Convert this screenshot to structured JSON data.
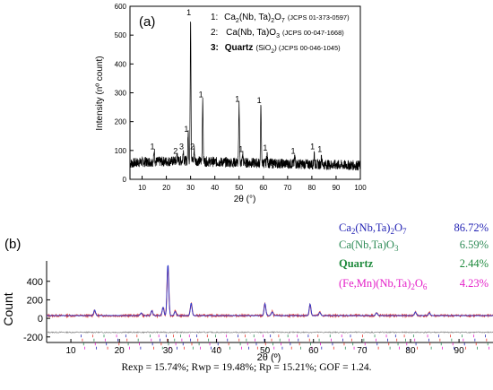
{
  "chart_data": [
    {
      "type": "line",
      "panel_label": "(a)",
      "xlabel": "2θ (°)",
      "ylabel": "Intensity (nº count)",
      "xlim": [
        5,
        100
      ],
      "ylim": [
        0,
        600
      ],
      "xticks": [
        10,
        20,
        30,
        40,
        50,
        60,
        70,
        80,
        90,
        100
      ],
      "yticks": [
        0,
        100,
        200,
        300,
        400,
        500,
        600
      ],
      "grid": false,
      "legend_position": "top-right",
      "legend": [
        {
          "num": "1:",
          "phase": "Ca",
          "s1": "2",
          "mid": "(Nb, Ta)",
          "s2": "2",
          "tail": "O",
          "s3": "7",
          "ref": "(JCPS 01-373-0597)"
        },
        {
          "num": "2:",
          "phase": "Ca(Nb, Ta)O",
          "s1": "3",
          "ref": "(JCPS 00-047-1668)"
        },
        {
          "num": "3:",
          "phase": "Quartz",
          "formula": "(SiO",
          "s1": "2",
          "close": ")",
          "ref": "(JCPS 00-046-1045)"
        }
      ],
      "background": [
        [
          5,
          55
        ],
        [
          10,
          60
        ],
        [
          20,
          62
        ],
        [
          30,
          65
        ],
        [
          40,
          60
        ],
        [
          50,
          58
        ],
        [
          60,
          56
        ],
        [
          70,
          54
        ],
        [
          80,
          52
        ],
        [
          90,
          50
        ],
        [
          100,
          48
        ]
      ],
      "noise_amplitude": 22,
      "peaks": [
        {
          "x": 15.0,
          "y": 95,
          "label": "1"
        },
        {
          "x": 24.5,
          "y": 80,
          "label": "2"
        },
        {
          "x": 27.0,
          "y": 95,
          "label": "3"
        },
        {
          "x": 29.0,
          "y": 155,
          "label": "1"
        },
        {
          "x": 30.0,
          "y": 560,
          "label": "1"
        },
        {
          "x": 31.5,
          "y": 95,
          "label": "2"
        },
        {
          "x": 35.0,
          "y": 275,
          "label": "1"
        },
        {
          "x": 50.0,
          "y": 260,
          "label": "1"
        },
        {
          "x": 51.5,
          "y": 85,
          "label": "1"
        },
        {
          "x": 59.0,
          "y": 255,
          "label": "1"
        },
        {
          "x": 61.5,
          "y": 90,
          "label": "1"
        },
        {
          "x": 73.0,
          "y": 80,
          "label": "1"
        },
        {
          "x": 81.0,
          "y": 95,
          "label": "1"
        },
        {
          "x": 84.0,
          "y": 85,
          "label": "1"
        }
      ]
    },
    {
      "type": "line",
      "panel_label": "(b)",
      "xlabel": "2θ (º)",
      "ylabel": "Count",
      "xlim": [
        5,
        97
      ],
      "ylim": [
        -260,
        620
      ],
      "xticks": [
        10,
        20,
        30,
        40,
        50,
        60,
        70,
        80,
        90
      ],
      "yticks": [
        -200,
        0,
        200,
        400
      ],
      "grid": false,
      "legend_position": "top-right",
      "legend": [
        {
          "base": "Ca",
          "s1": "2",
          "mid": "(Nb,Ta)",
          "s2": "2",
          "tail": "O",
          "s3": "7",
          "pct": "86.72%",
          "color": "#2323b4"
        },
        {
          "base": "Ca(Nb,Ta)O",
          "s1": "3",
          "pct": "6.59%",
          "color": "#2e8b57"
        },
        {
          "base": "Quartz",
          "pct": "2.44%",
          "color": "#1e8a3c",
          "bold": true
        },
        {
          "base": "(Fe,Mn)(Nb,Ta)",
          "s1": "2",
          "tail": "O",
          "s2": "6",
          "pct": "4.23%",
          "color": "#e41ec8"
        }
      ],
      "series": [
        {
          "name": "Observed",
          "color": "#e8352a"
        },
        {
          "name": "Calculated",
          "color": "#2a3fd6"
        },
        {
          "name": "Difference",
          "color": "#7f7f7f"
        }
      ],
      "baseline": 30,
      "difference_offset": -150,
      "peaks": [
        {
          "x": 14.9,
          "y": 60
        },
        {
          "x": 24.5,
          "y": 30
        },
        {
          "x": 26.7,
          "y": 55
        },
        {
          "x": 29.0,
          "y": 90
        },
        {
          "x": 30.0,
          "y": 560
        },
        {
          "x": 31.5,
          "y": 45
        },
        {
          "x": 34.8,
          "y": 135
        },
        {
          "x": 50.0,
          "y": 130
        },
        {
          "x": 51.5,
          "y": 40
        },
        {
          "x": 59.3,
          "y": 125
        },
        {
          "x": 61.3,
          "y": 35
        },
        {
          "x": 73.0,
          "y": 30
        },
        {
          "x": 81.0,
          "y": 40
        },
        {
          "x": 83.9,
          "y": 30
        }
      ],
      "reflection_ticks": [
        12.5,
        14.9,
        17.2,
        19.8,
        21.7,
        24.0,
        26.7,
        28.5,
        30.0,
        31.5,
        33.0,
        34.8,
        36.3,
        38.5,
        40.2,
        42.4,
        44.8,
        46.3,
        48.1,
        50.0,
        51.5,
        53.2,
        55.1,
        57.0,
        59.3,
        61.3,
        63.8,
        66.2,
        68.0,
        70.5,
        73.0,
        75.4,
        77.3,
        79.1,
        81.0,
        83.9,
        86.2,
        88.6,
        91.0,
        93.4,
        95.8
      ]
    }
  ],
  "refinement": {
    "text": "Rexp = 15.74%; Rwp = 19.48%; Rp = 15.21%; GOF = 1.24."
  },
  "colors": {
    "axis": "#000000",
    "reflection_ticks": [
      "#2323b4",
      "#e8352a",
      "#2e8b57",
      "#e41ec8"
    ]
  }
}
